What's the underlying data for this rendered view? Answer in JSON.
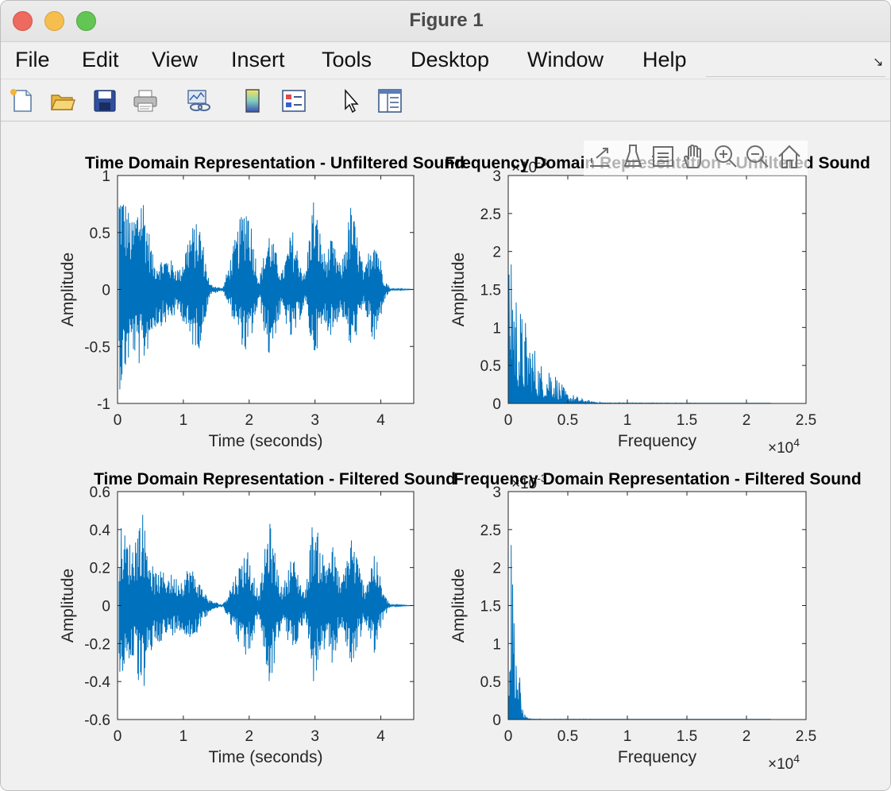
{
  "window": {
    "title": "Figure 1"
  },
  "menu": [
    "File",
    "Edit",
    "View",
    "Insert",
    "Tools",
    "Desktop",
    "Window",
    "Help"
  ],
  "toolbar": {
    "icons": [
      "new-figure-icon",
      "open-file-icon",
      "save-icon",
      "print-icon",
      "link-plot-icon",
      "insert-colorbar-icon",
      "insert-legend-icon",
      "edit-plot-arrow-icon",
      "property-inspector-icon"
    ]
  },
  "axes_toolbar": {
    "icons": [
      "export-icon",
      "brush-icon",
      "data-tips-icon",
      "pan-icon",
      "zoom-in-icon",
      "zoom-out-icon",
      "restore-view-icon"
    ]
  },
  "colors": {
    "series": "#0072bd",
    "axes_bg": "#ffffff",
    "figure_bg": "#f0f0f0"
  },
  "chart_data": [
    {
      "type": "line",
      "title": "Time Domain Representation - Unfiltered Sound",
      "xlabel": "Time (seconds)",
      "ylabel": "Amplitude",
      "xlim": [
        0,
        4.5
      ],
      "ylim": [
        -1,
        1
      ],
      "xticks": [
        "0",
        "1",
        "2",
        "3",
        "4"
      ],
      "yticks": [
        "-1",
        "-0.5",
        "0",
        "0.5",
        "1"
      ],
      "envelope": [
        {
          "t": 0.05,
          "upper": 0.95,
          "lower": -0.88
        },
        {
          "t": 0.22,
          "upper": 0.6,
          "lower": -0.55
        },
        {
          "t": 0.37,
          "upper": 0.95,
          "lower": -0.72
        },
        {
          "t": 0.55,
          "upper": 0.25,
          "lower": -0.35
        },
        {
          "t": 0.75,
          "upper": 0.3,
          "lower": -0.3
        },
        {
          "t": 0.95,
          "upper": 0.18,
          "lower": -0.2
        },
        {
          "t": 1.1,
          "upper": 0.55,
          "lower": -0.5
        },
        {
          "t": 1.25,
          "upper": 0.6,
          "lower": -0.52
        },
        {
          "t": 1.4,
          "upper": 0.05,
          "lower": -0.05
        },
        {
          "t": 1.6,
          "upper": 0.01,
          "lower": -0.01
        },
        {
          "t": 1.97,
          "upper": 0.88,
          "lower": -0.62
        },
        {
          "t": 2.15,
          "upper": 0.08,
          "lower": -0.1
        },
        {
          "t": 2.3,
          "upper": 0.55,
          "lower": -0.62
        },
        {
          "t": 2.5,
          "upper": 0.15,
          "lower": -0.18
        },
        {
          "t": 2.65,
          "upper": 0.55,
          "lower": -0.5
        },
        {
          "t": 2.85,
          "upper": 0.12,
          "lower": -0.12
        },
        {
          "t": 2.97,
          "upper": 0.85,
          "lower": -0.62
        },
        {
          "t": 3.15,
          "upper": 0.3,
          "lower": -0.32
        },
        {
          "t": 3.25,
          "upper": 0.45,
          "lower": -0.42
        },
        {
          "t": 3.4,
          "upper": 0.2,
          "lower": -0.2
        },
        {
          "t": 3.55,
          "upper": 0.78,
          "lower": -0.58
        },
        {
          "t": 3.75,
          "upper": 0.15,
          "lower": -0.15
        },
        {
          "t": 3.9,
          "upper": 0.6,
          "lower": -0.55
        },
        {
          "t": 4.05,
          "upper": 0.1,
          "lower": -0.1
        },
        {
          "t": 4.15,
          "upper": 0.01,
          "lower": -0.01
        },
        {
          "t": 4.5,
          "upper": 0.0,
          "lower": 0.0
        }
      ]
    },
    {
      "type": "line",
      "title": "Frequency Domain Representation - Unfiltered Sound",
      "xlabel": "Frequency",
      "ylabel": "Amplitude",
      "xlim": [
        0,
        25000
      ],
      "ylim": [
        0,
        0.003
      ],
      "x_exponent": "×10",
      "x_exponent_power": "4",
      "y_exponent": "×10",
      "y_exponent_power": "-3",
      "xticks": [
        "0",
        "0.5",
        "1",
        "1.5",
        "2",
        "2.5"
      ],
      "yticks": [
        "0",
        "0.5",
        "1",
        "1.5",
        "2",
        "2.5",
        "3"
      ],
      "x_max_data": 22050,
      "spectrum": [
        {
          "f": 0,
          "amp": 5e-05
        },
        {
          "f": 100,
          "amp": 0.0026
        },
        {
          "f": 300,
          "amp": 0.0027
        },
        {
          "f": 500,
          "amp": 0.0018
        },
        {
          "f": 1000,
          "amp": 0.0013
        },
        {
          "f": 1500,
          "amp": 0.0011
        },
        {
          "f": 2000,
          "amp": 0.0009
        },
        {
          "f": 2500,
          "amp": 0.0006
        },
        {
          "f": 3000,
          "amp": 0.0005
        },
        {
          "f": 3500,
          "amp": 0.0006
        },
        {
          "f": 4000,
          "amp": 0.0004
        },
        {
          "f": 4500,
          "amp": 0.00025
        },
        {
          "f": 5000,
          "amp": 0.00015
        },
        {
          "f": 6000,
          "amp": 8e-05
        },
        {
          "f": 7000,
          "amp": 3e-05
        },
        {
          "f": 8000,
          "amp": 1e-05
        },
        {
          "f": 22050,
          "amp": 0.0
        }
      ]
    },
    {
      "type": "line",
      "title": "Time Domain Representation - Filtered Sound",
      "xlabel": "Time (seconds)",
      "ylabel": "Amplitude",
      "xlim": [
        0,
        4.5
      ],
      "ylim": [
        -0.6,
        0.6
      ],
      "xticks": [
        "0",
        "1",
        "2",
        "3",
        "4"
      ],
      "yticks": [
        "-0.6",
        "-0.4",
        "-0.2",
        "0",
        "0.2",
        "0.4",
        "0.6"
      ],
      "envelope": [
        {
          "t": 0.05,
          "upper": 0.42,
          "lower": -0.38
        },
        {
          "t": 0.22,
          "upper": 0.32,
          "lower": -0.28
        },
        {
          "t": 0.37,
          "upper": 0.52,
          "lower": -0.5
        },
        {
          "t": 0.55,
          "upper": 0.18,
          "lower": -0.2
        },
        {
          "t": 0.75,
          "upper": 0.18,
          "lower": -0.18
        },
        {
          "t": 0.95,
          "upper": 0.14,
          "lower": -0.13
        },
        {
          "t": 1.1,
          "upper": 0.22,
          "lower": -0.2
        },
        {
          "t": 1.25,
          "upper": 0.12,
          "lower": -0.12
        },
        {
          "t": 1.4,
          "upper": 0.03,
          "lower": -0.03
        },
        {
          "t": 1.6,
          "upper": 0.005,
          "lower": -0.005
        },
        {
          "t": 1.97,
          "upper": 0.32,
          "lower": -0.3
        },
        {
          "t": 2.15,
          "upper": 0.05,
          "lower": -0.05
        },
        {
          "t": 2.3,
          "upper": 0.47,
          "lower": -0.46
        },
        {
          "t": 2.5,
          "upper": 0.08,
          "lower": -0.09
        },
        {
          "t": 2.65,
          "upper": 0.28,
          "lower": -0.27
        },
        {
          "t": 2.85,
          "upper": 0.06,
          "lower": -0.06
        },
        {
          "t": 2.97,
          "upper": 0.48,
          "lower": -0.42
        },
        {
          "t": 3.15,
          "upper": 0.25,
          "lower": -0.25
        },
        {
          "t": 3.25,
          "upper": 0.35,
          "lower": -0.33
        },
        {
          "t": 3.4,
          "upper": 0.12,
          "lower": -0.12
        },
        {
          "t": 3.55,
          "upper": 0.4,
          "lower": -0.34
        },
        {
          "t": 3.75,
          "upper": 0.1,
          "lower": -0.1
        },
        {
          "t": 3.9,
          "upper": 0.3,
          "lower": -0.25
        },
        {
          "t": 4.05,
          "upper": 0.06,
          "lower": -0.06
        },
        {
          "t": 4.15,
          "upper": 0.005,
          "lower": -0.005
        },
        {
          "t": 4.5,
          "upper": 0.0,
          "lower": 0.0
        }
      ]
    },
    {
      "type": "line",
      "title": "Frequency Domain Representation - Filtered Sound",
      "xlabel": "Frequency",
      "ylabel": "Amplitude",
      "xlim": [
        0,
        25000
      ],
      "ylim": [
        0,
        0.003
      ],
      "x_exponent": "×10",
      "x_exponent_power": "4",
      "y_exponent": "×10",
      "y_exponent_power": "-3",
      "xticks": [
        "0",
        "0.5",
        "1",
        "1.5",
        "2",
        "2.5"
      ],
      "yticks": [
        "0",
        "0.5",
        "1",
        "1.5",
        "2",
        "2.5",
        "3"
      ],
      "x_max_data": 22050,
      "spectrum": [
        {
          "f": 0,
          "amp": 5e-05
        },
        {
          "f": 100,
          "amp": 0.0026
        },
        {
          "f": 300,
          "amp": 0.0028
        },
        {
          "f": 500,
          "amp": 0.0018
        },
        {
          "f": 700,
          "amp": 0.0012
        },
        {
          "f": 900,
          "amp": 0.0007
        },
        {
          "f": 1100,
          "amp": 0.0003
        },
        {
          "f": 1300,
          "amp": 0.0001
        },
        {
          "f": 1600,
          "amp": 2e-05
        },
        {
          "f": 2000,
          "amp": 5e-06
        },
        {
          "f": 22050,
          "amp": 0.0
        }
      ]
    }
  ]
}
